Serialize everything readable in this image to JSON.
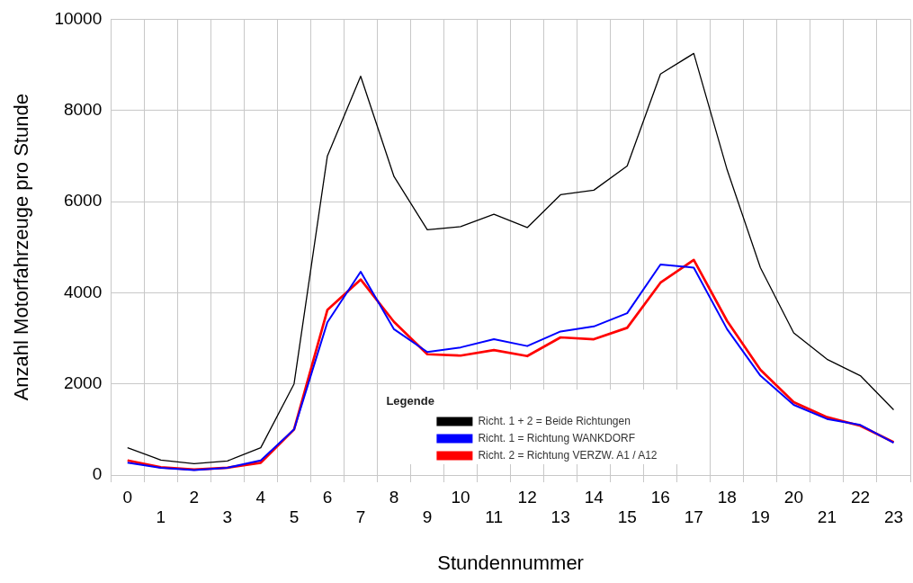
{
  "chart_data": {
    "type": "line",
    "xlabel": "Stundennummer",
    "ylabel": "Anzahl Motorfahrzeuge pro Stunde",
    "legend_title": "Legende",
    "categories": [
      "0",
      "1",
      "2",
      "3",
      "4",
      "5",
      "6",
      "7",
      "8",
      "9",
      "10",
      "11",
      "12",
      "13",
      "14",
      "15",
      "16",
      "17",
      "18",
      "19",
      "20",
      "21",
      "22",
      "23"
    ],
    "series": [
      {
        "name": "Richt. 1 + 2 = Beide Richtungen",
        "color": "#000000",
        "values": [
          600,
          330,
          250,
          310,
          600,
          2000,
          7000,
          8750,
          6550,
          5380,
          5450,
          5720,
          5430,
          6150,
          6250,
          6780,
          8800,
          9250,
          6700,
          4550,
          3120,
          2540,
          2180,
          1430
        ]
      },
      {
        "name": "Richt. 1 = Richtung WANKDORF",
        "color": "#0000ff",
        "values": [
          270,
          160,
          110,
          160,
          320,
          1000,
          3350,
          4460,
          3200,
          2700,
          2800,
          2980,
          2830,
          3150,
          3260,
          3550,
          4620,
          4550,
          3200,
          2180,
          1540,
          1230,
          1100,
          710
        ]
      },
      {
        "name": "Richt. 2 = Richtung VERZW. A1 / A12",
        "color": "#ff0000",
        "values": [
          320,
          170,
          120,
          160,
          270,
          1000,
          3620,
          4290,
          3360,
          2650,
          2620,
          2740,
          2610,
          3020,
          2980,
          3230,
          4220,
          4720,
          3380,
          2310,
          1600,
          1270,
          1080,
          720
        ]
      }
    ],
    "ylim": [
      0,
      10000
    ],
    "yticks": [
      0,
      2000,
      4000,
      6000,
      8000,
      10000
    ],
    "grid": true,
    "legend": "bottom",
    "marker": "none",
    "line_style": "solid"
  }
}
